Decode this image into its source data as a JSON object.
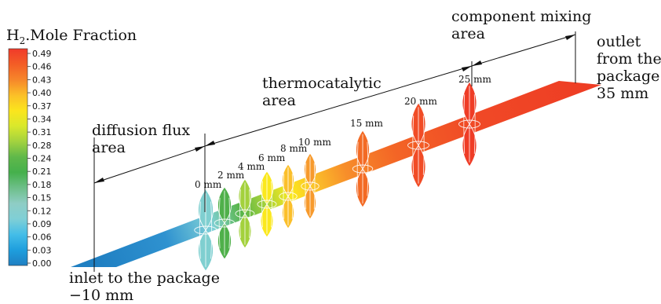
{
  "colorbar": {
    "title_prefix": "H",
    "title_sub": "2",
    "title_suffix": ".Mole Fraction",
    "ticks": [
      "0.49",
      "0.46",
      "0.43",
      "0.40",
      "0.37",
      "0.34",
      "0.31",
      "0.28",
      "0.24",
      "0.21",
      "0.18",
      "0.15",
      "0.12",
      "0.09",
      "0.06",
      "0.03",
      "0.00"
    ],
    "stops": [
      "#f03a2a",
      "#f35d26",
      "#f6862a",
      "#fbbf28",
      "#fbe51d",
      "#d9e82c",
      "#a2d23f",
      "#5fb84a",
      "#45b04c",
      "#6ebf8a",
      "#8fcdc5",
      "#7fcfd6",
      "#44bde8",
      "#1e9edd",
      "#1f7fc2"
    ]
  },
  "labels": {
    "component_mixing": [
      "component mixing",
      "area"
    ],
    "outlet": [
      "outlet",
      "from the",
      "package",
      "35 mm"
    ],
    "thermocatalytic": [
      "thermocatalytic",
      "area"
    ],
    "diffusion": [
      "diffusion flux",
      "area"
    ],
    "inlet": [
      "inlet to the package",
      "−10 mm"
    ]
  },
  "slices": [
    {
      "label": "0 mm",
      "color": "#7fcfd0"
    },
    {
      "label": "2 mm",
      "color": "#4fb04a"
    },
    {
      "label": "4 mm",
      "color": "#a3d13c"
    },
    {
      "label": "6 mm",
      "color": "#fbe81c"
    },
    {
      "label": "8 mm",
      "color": "#fbbf2a"
    },
    {
      "label": "10 mm",
      "color": "#f79a2c"
    },
    {
      "label": "15 mm",
      "color": "#f36a24"
    },
    {
      "label": "20 mm",
      "color": "#f14c26"
    },
    {
      "label": "25 mm",
      "color": "#ef3c26"
    }
  ],
  "colors": {
    "inlet_band": "#1f7fc2",
    "outlet_band": "#ee3d24",
    "line": "#111111"
  }
}
